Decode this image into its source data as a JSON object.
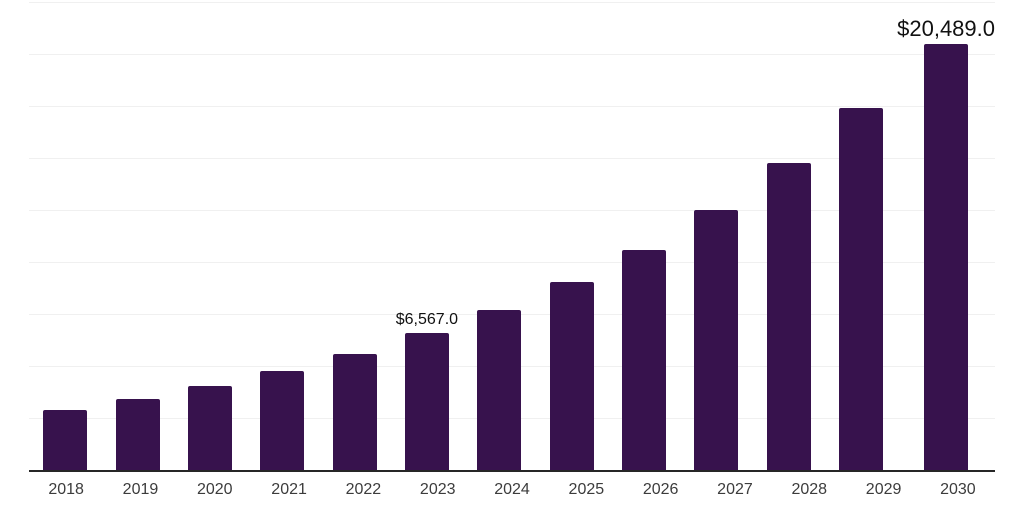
{
  "chart_data": {
    "type": "bar",
    "title": "",
    "xlabel": "",
    "ylabel": "",
    "categories": [
      "2018",
      "2019",
      "2020",
      "2021",
      "2022",
      "2023",
      "2024",
      "2025",
      "2026",
      "2027",
      "2028",
      "2029",
      "2030"
    ],
    "values": [
      2880,
      3405,
      4025,
      4740,
      5555,
      6567,
      7710,
      9050,
      10590,
      12500,
      14750,
      17390,
      20489
    ],
    "bar_labels": [
      {
        "index": 5,
        "text": "$6,567.0",
        "size": "normal"
      },
      {
        "index": 12,
        "text": "$20,489.0",
        "size": "large"
      }
    ],
    "ylim": [
      0,
      22500
    ],
    "grid_step": 2500,
    "grid": "horizontal",
    "legend_position": "none",
    "y_axis_labels_visible": false
  },
  "colors": {
    "bar": "#37124D",
    "axis": "#262626",
    "grid": "#F0F0F0",
    "tick_label": "#3C3C3C",
    "value_label": "#111111",
    "background": "#FFFFFF"
  }
}
